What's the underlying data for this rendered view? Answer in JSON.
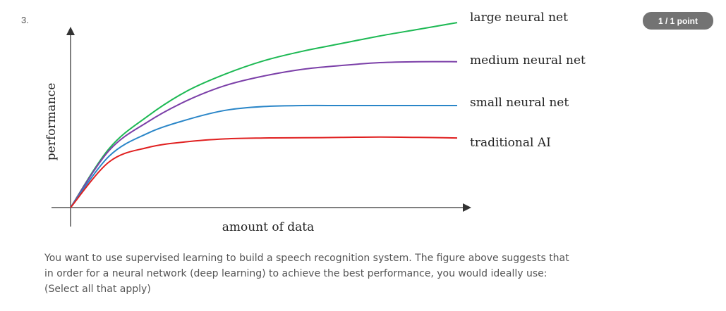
{
  "question": {
    "number": "3.",
    "score_badge": "1 / 1 point",
    "prompt_lines": [
      "You want to use supervised learning to build a speech recognition system. The figure above suggests that",
      "in order for a neural network (deep learning) to achieve the best performance, you would ideally use:",
      "(Select all that apply)"
    ]
  },
  "chart_data": {
    "type": "line",
    "xlabel": "amount of data",
    "ylabel": "performance",
    "grid": false,
    "legend": "right, labels at line ends",
    "x": [
      0,
      1,
      2,
      3,
      4,
      5,
      6,
      7,
      8,
      9,
      10
    ],
    "series": [
      {
        "name": "large neural net",
        "color": "#1db954",
        "values": [
          0,
          3.1,
          4.8,
          6.1,
          7.0,
          7.7,
          8.2,
          8.6,
          9.0,
          9.35,
          9.7
        ]
      },
      {
        "name": "medium neural net",
        "color": "#7b3fa8",
        "values": [
          0,
          3.0,
          4.5,
          5.6,
          6.4,
          6.9,
          7.25,
          7.45,
          7.6,
          7.65,
          7.65
        ]
      },
      {
        "name": "small neural net",
        "color": "#2a86c8",
        "values": [
          0,
          2.7,
          3.9,
          4.6,
          5.1,
          5.3,
          5.35,
          5.35,
          5.35,
          5.35,
          5.35
        ]
      },
      {
        "name": "traditional AI",
        "color": "#e02020",
        "values": [
          0,
          2.4,
          3.15,
          3.45,
          3.6,
          3.65,
          3.66,
          3.68,
          3.7,
          3.68,
          3.65
        ]
      }
    ]
  }
}
